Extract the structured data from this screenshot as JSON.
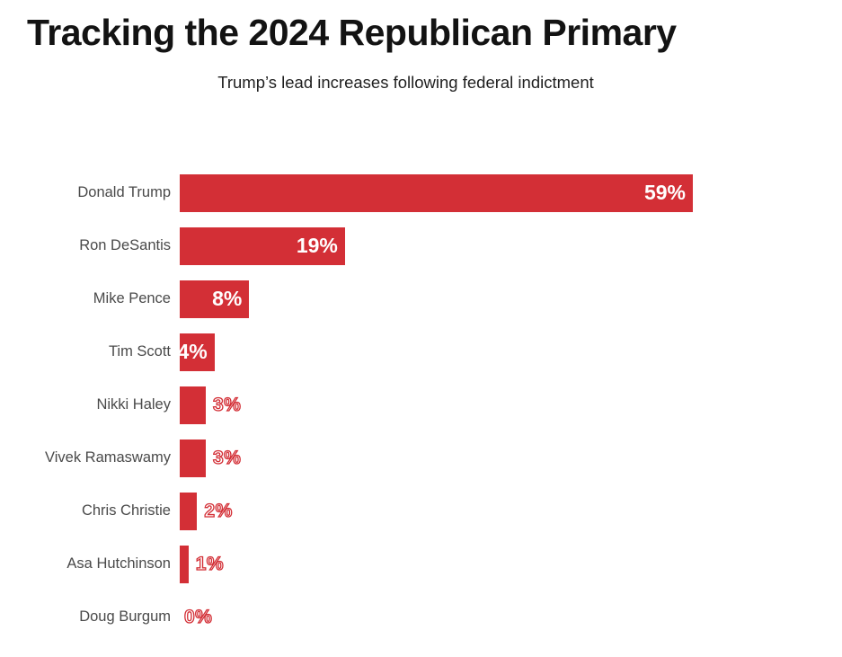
{
  "header": {
    "title": "Tracking the 2024 Republican Primary",
    "subtitle": "Trump’s lead increases following federal indictment"
  },
  "colors": {
    "bar": "#d32f36",
    "category_label": "#4a4a4a",
    "title": "#131313",
    "subtitle": "#1f1f1f",
    "inside_value_label": "#ffffff"
  },
  "chart_data": {
    "type": "bar",
    "orientation": "horizontal",
    "title": "Tracking the 2024 Republican Primary",
    "subtitle": "Trump’s lead increases following federal indictment",
    "categories": [
      "Donald Trump",
      "Ron DeSantis",
      "Mike Pence",
      "Tim Scott",
      "Nikki Haley",
      "Vivek Ramaswamy",
      "Chris Christie",
      "Asa Hutchinson",
      "Doug Burgum"
    ],
    "values": [
      59,
      19,
      8,
      4,
      3,
      3,
      2,
      1,
      0
    ],
    "value_labels": [
      "59%",
      "19%",
      "8%",
      "4%",
      "3%",
      "3%",
      "2%",
      "1%",
      "0%"
    ],
    "xlim": [
      0,
      59
    ],
    "grid": false,
    "legend": false,
    "value_label_style": "inside-white-for-large-bars, red-outlined-outside-for-small-bars"
  }
}
